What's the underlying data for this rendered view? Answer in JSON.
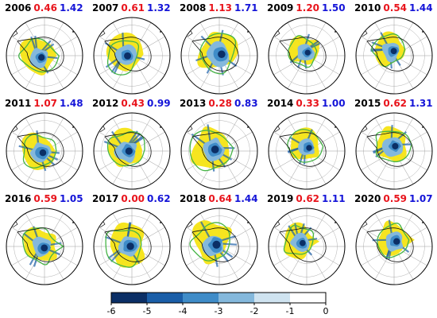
{
  "colors": {
    "value_red": "#e8141c",
    "value_blue": "#1414d8",
    "ozone_yellow": "#f5e414",
    "contour_green": "#46b446",
    "coast_black": "#111111",
    "grid_gray": "#9a9a9a",
    "shade_levels": [
      "#0b2f66",
      "#1a5ea8",
      "#3f8cc8",
      "#84b8dc",
      "#cfe3f0",
      "#ffffff"
    ]
  },
  "panels": [
    {
      "year": "2006",
      "red": "0.46",
      "blue": "1.42"
    },
    {
      "year": "2007",
      "red": "0.61",
      "blue": "1.32"
    },
    {
      "year": "2008",
      "red": "1.13",
      "blue": "1.71"
    },
    {
      "year": "2009",
      "red": "1.20",
      "blue": "1.50"
    },
    {
      "year": "2010",
      "red": "0.54",
      "blue": "1.44"
    },
    {
      "year": "2011",
      "red": "1.07",
      "blue": "1.48"
    },
    {
      "year": "2012",
      "red": "0.43",
      "blue": "0.99"
    },
    {
      "year": "2013",
      "red": "0.28",
      "blue": "0.83"
    },
    {
      "year": "2014",
      "red": "0.33",
      "blue": "1.00"
    },
    {
      "year": "2015",
      "red": "0.62",
      "blue": "1.31"
    },
    {
      "year": "2016",
      "red": "0.59",
      "blue": "1.05"
    },
    {
      "year": "2017",
      "red": "0.00",
      "blue": "0.62"
    },
    {
      "year": "2018",
      "red": "0.64",
      "blue": "1.44"
    },
    {
      "year": "2019",
      "red": "0.62",
      "blue": "1.11"
    },
    {
      "year": "2020",
      "red": "0.59",
      "blue": "1.07"
    }
  ],
  "colorbar": {
    "ticks": [
      "-6",
      "-5",
      "-4",
      "-3",
      "-2",
      "-1",
      "0"
    ]
  }
}
